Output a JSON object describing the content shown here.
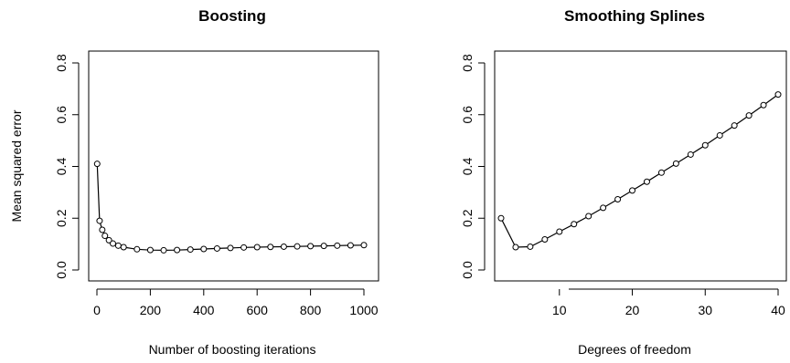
{
  "chart_data": [
    {
      "type": "line",
      "title": "Boosting",
      "xlabel": "Number of boosting iterations",
      "ylabel": "Mean squared error",
      "xlim": [
        0,
        1000
      ],
      "ylim": [
        0,
        0.8
      ],
      "xticks": [
        "0",
        "200",
        "400",
        "600",
        "800",
        "1000"
      ],
      "yticks": [
        "0.0",
        "0.2",
        "0.4",
        "0.6",
        "0.8"
      ],
      "grid": false,
      "series": [
        {
          "x": [
            1,
            10,
            20,
            30,
            45,
            60,
            80,
            100,
            150,
            200,
            250,
            300,
            350,
            400,
            450,
            500,
            550,
            600,
            650,
            700,
            750,
            800,
            850,
            900,
            950,
            1000
          ],
          "y": [
            0.41,
            0.19,
            0.155,
            0.132,
            0.115,
            0.102,
            0.094,
            0.088,
            0.08,
            0.077,
            0.076,
            0.077,
            0.079,
            0.081,
            0.083,
            0.085,
            0.087,
            0.088,
            0.089,
            0.09,
            0.091,
            0.092,
            0.093,
            0.094,
            0.095,
            0.096
          ]
        }
      ]
    },
    {
      "type": "line",
      "title": "Smoothing Splines",
      "xlabel": "Degrees of freedom",
      "ylabel": "",
      "xlim": [
        2,
        40
      ],
      "ylim": [
        0,
        0.8
      ],
      "xticks": [
        "10",
        "20",
        "30",
        "40"
      ],
      "yticks": [
        "0.0",
        "0.2",
        "0.4",
        "0.6",
        "0.8"
      ],
      "grid": false,
      "series": [
        {
          "x": [
            2,
            4,
            6,
            8,
            10,
            12,
            14,
            16,
            18,
            20,
            22,
            24,
            26,
            28,
            30,
            32,
            34,
            36,
            38,
            40
          ],
          "y": [
            0.2,
            0.088,
            0.09,
            0.118,
            0.148,
            0.177,
            0.208,
            0.24,
            0.273,
            0.307,
            0.341,
            0.376,
            0.411,
            0.446,
            0.482,
            0.52,
            0.558,
            0.597,
            0.637,
            0.678
          ]
        }
      ]
    }
  ]
}
